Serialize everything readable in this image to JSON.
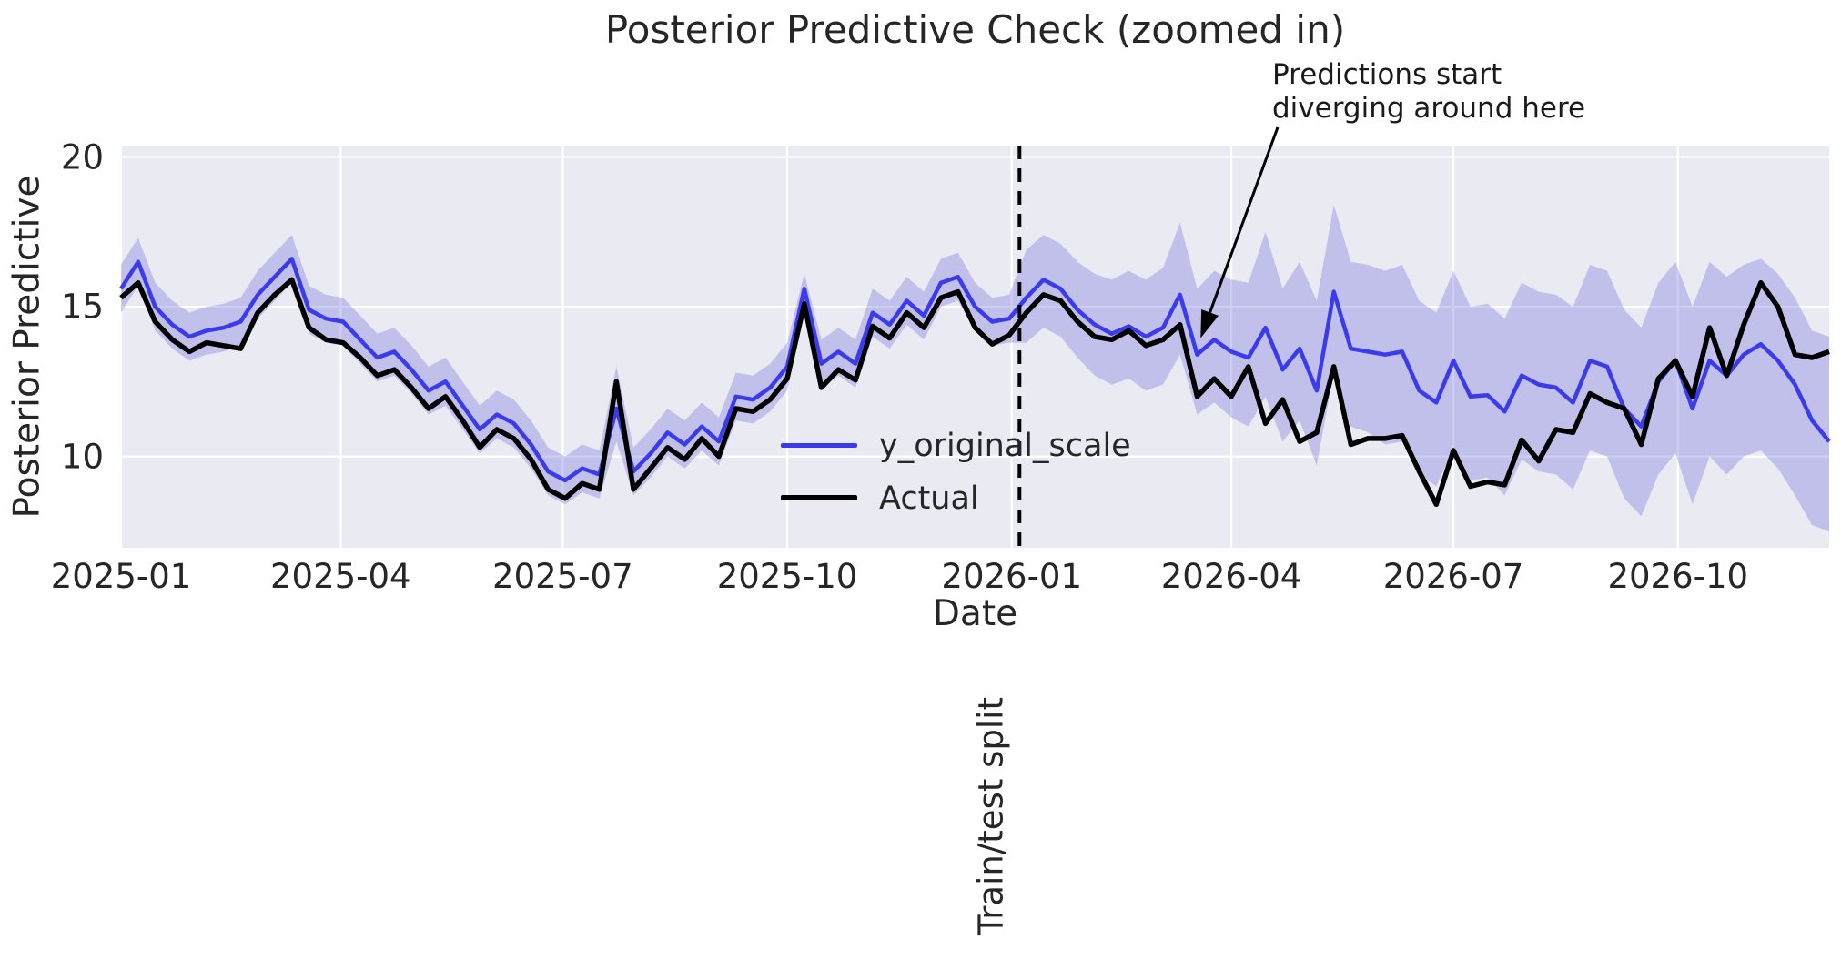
{
  "title": "Posterior Predictive Check (zoomed in)",
  "annotation": {
    "line1": "Predictions start",
    "line2": "diverging around here",
    "tip_week": 63.2,
    "tip_value": 13.95
  },
  "split": {
    "label": "Train/test split",
    "week": 52.6
  },
  "axes": {
    "xlabel": "Date",
    "ylabel": "Posterior Predictive"
  },
  "legend": {
    "entries": [
      "y_original_scale",
      "Actual"
    ]
  },
  "colors": {
    "plot_background": "#eaeaf2",
    "gridline": "#ffffff",
    "predicted_line": "#3b3bec",
    "actual_line": "#000000",
    "band_fill": "rgba(105,105,219,0.33)",
    "text": "#262626",
    "annotation_arrow": "#000000",
    "split_line": "#000000"
  },
  "chart_data": {
    "type": "line",
    "title": "Posterior Predictive Check (zoomed in)",
    "xlabel": "Date",
    "ylabel": "Posterior Predictive",
    "ylim": [
      6.95,
      20.38
    ],
    "yticks": [
      10,
      15,
      20
    ],
    "grid": true,
    "legend_position": "center-right-inside",
    "x_weeks_total": 100,
    "xticks": [
      {
        "week": 0.0,
        "label": "2025-01"
      },
      {
        "week": 12.857,
        "label": "2025-04"
      },
      {
        "week": 25.857,
        "label": "2025-07"
      },
      {
        "week": 39.0,
        "label": "2025-10"
      },
      {
        "week": 52.143,
        "label": "2026-01"
      },
      {
        "week": 65.0,
        "label": "2026-04"
      },
      {
        "week": 78.0,
        "label": "2026-07"
      },
      {
        "week": 91.143,
        "label": "2026-10"
      }
    ],
    "dates": [
      "2025-01-01",
      "2025-01-08",
      "2025-01-15",
      "2025-01-22",
      "2025-01-29",
      "2025-02-05",
      "2025-02-12",
      "2025-02-19",
      "2025-02-26",
      "2025-03-05",
      "2025-03-12",
      "2025-03-19",
      "2025-03-26",
      "2025-04-02",
      "2025-04-09",
      "2025-04-16",
      "2025-04-23",
      "2025-04-30",
      "2025-05-07",
      "2025-05-14",
      "2025-05-21",
      "2025-05-28",
      "2025-06-04",
      "2025-06-11",
      "2025-06-18",
      "2025-06-25",
      "2025-07-02",
      "2025-07-09",
      "2025-07-16",
      "2025-07-23",
      "2025-07-30",
      "2025-08-06",
      "2025-08-13",
      "2025-08-20",
      "2025-08-27",
      "2025-09-03",
      "2025-09-10",
      "2025-09-17",
      "2025-09-24",
      "2025-10-01",
      "2025-10-08",
      "2025-10-15",
      "2025-10-22",
      "2025-10-29",
      "2025-11-05",
      "2025-11-12",
      "2025-11-19",
      "2025-11-26",
      "2025-12-03",
      "2025-12-10",
      "2025-12-17",
      "2025-12-24",
      "2025-12-31",
      "2026-01-07",
      "2026-01-14",
      "2026-01-21",
      "2026-01-28",
      "2026-02-04",
      "2026-02-11",
      "2026-02-18",
      "2026-02-25",
      "2026-03-04",
      "2026-03-11",
      "2026-03-18",
      "2026-03-25",
      "2026-04-01",
      "2026-04-08",
      "2026-04-15",
      "2026-04-22",
      "2026-04-29",
      "2026-05-06",
      "2026-05-13",
      "2026-05-20",
      "2026-05-27",
      "2026-06-03",
      "2026-06-10",
      "2026-06-17",
      "2026-06-24",
      "2026-07-01",
      "2026-07-08",
      "2026-07-15",
      "2026-07-22",
      "2026-07-29",
      "2026-08-05",
      "2026-08-12",
      "2026-08-19",
      "2026-08-26",
      "2026-09-02",
      "2026-09-09",
      "2026-09-16",
      "2026-09-23",
      "2026-09-30",
      "2026-10-07",
      "2026-10-14",
      "2026-10-21",
      "2026-10-28",
      "2026-11-04",
      "2026-11-11",
      "2026-11-18",
      "2026-11-25",
      "2026-12-02"
    ],
    "series": [
      {
        "name": "y_original_scale",
        "color": "#3b3bec",
        "values": [
          15.6,
          16.5,
          15.0,
          14.4,
          14.0,
          14.2,
          14.3,
          14.5,
          15.4,
          16.0,
          16.6,
          14.9,
          14.6,
          14.5,
          13.9,
          13.3,
          13.5,
          12.9,
          12.2,
          12.5,
          11.7,
          10.9,
          11.4,
          11.1,
          10.4,
          9.5,
          9.2,
          9.6,
          9.4,
          11.6,
          9.5,
          10.1,
          10.8,
          10.4,
          11.0,
          10.5,
          12.0,
          11.9,
          12.3,
          13.0,
          15.6,
          13.1,
          13.5,
          13.1,
          14.8,
          14.4,
          15.2,
          14.7,
          15.8,
          16.0,
          15.0,
          14.5,
          14.6,
          15.3,
          15.9,
          15.6,
          14.9,
          14.4,
          14.1,
          14.35,
          14.0,
          14.3,
          15.4,
          13.4,
          13.9,
          13.5,
          13.3,
          14.3,
          12.9,
          13.6,
          12.2,
          15.5,
          13.6,
          13.5,
          13.4,
          13.5,
          12.2,
          11.8,
          13.2,
          12.0,
          12.05,
          11.5,
          12.7,
          12.4,
          12.3,
          11.8,
          13.2,
          13.0,
          11.6,
          11.0,
          12.5,
          13.2,
          11.6,
          13.2,
          12.7,
          13.4,
          13.75,
          13.2,
          12.4,
          11.2,
          10.5
        ]
      },
      {
        "name": "Actual",
        "color": "#000000",
        "values": [
          15.3,
          15.8,
          14.5,
          13.9,
          13.5,
          13.8,
          13.7,
          13.6,
          14.8,
          15.4,
          15.9,
          14.3,
          13.9,
          13.8,
          13.3,
          12.7,
          12.9,
          12.3,
          11.6,
          12.0,
          11.2,
          10.3,
          10.9,
          10.6,
          9.9,
          8.9,
          8.6,
          9.1,
          8.9,
          12.5,
          8.9,
          9.6,
          10.3,
          9.9,
          10.6,
          10.0,
          11.6,
          11.5,
          11.9,
          12.6,
          15.1,
          12.3,
          12.9,
          12.55,
          14.35,
          13.95,
          14.8,
          14.3,
          15.3,
          15.5,
          14.3,
          13.75,
          14.05,
          14.8,
          15.4,
          15.2,
          14.5,
          14.0,
          13.9,
          14.2,
          13.7,
          13.9,
          14.4,
          12.0,
          12.6,
          12.0,
          13.0,
          11.1,
          11.9,
          10.5,
          10.8,
          13.0,
          10.4,
          10.6,
          10.6,
          10.7,
          9.5,
          8.4,
          10.2,
          9.0,
          9.15,
          9.05,
          10.55,
          9.85,
          10.9,
          10.8,
          12.1,
          11.8,
          11.6,
          10.4,
          12.6,
          13.2,
          12.0,
          14.3,
          12.7,
          14.4,
          15.8,
          15.0,
          13.4,
          13.3,
          13.5
        ]
      }
    ],
    "band": {
      "name": "posterior_predictive_interval",
      "upper": [
        16.4,
        17.3,
        15.8,
        15.2,
        14.8,
        15.0,
        15.1,
        15.3,
        16.2,
        16.8,
        17.4,
        15.7,
        15.4,
        15.3,
        14.7,
        14.1,
        14.3,
        13.7,
        13.0,
        13.3,
        12.5,
        11.7,
        12.2,
        11.9,
        11.2,
        10.3,
        10.0,
        10.4,
        10.2,
        13.0,
        10.3,
        10.9,
        11.6,
        11.2,
        11.8,
        11.3,
        12.8,
        12.7,
        13.1,
        13.8,
        16.1,
        13.9,
        14.3,
        13.9,
        15.6,
        15.2,
        16.0,
        15.5,
        16.6,
        16.8,
        15.8,
        15.3,
        15.4,
        16.9,
        17.4,
        17.1,
        16.5,
        16.1,
        15.9,
        16.2,
        15.9,
        16.3,
        17.8,
        15.6,
        16.2,
        15.9,
        15.8,
        17.5,
        15.6,
        16.5,
        15.2,
        18.4,
        16.5,
        16.4,
        16.2,
        16.4,
        15.2,
        14.8,
        16.2,
        15.0,
        15.1,
        14.6,
        15.8,
        15.5,
        15.4,
        15.0,
        16.4,
        16.2,
        14.9,
        14.3,
        15.8,
        16.5,
        15.0,
        16.5,
        16.0,
        16.4,
        16.6,
        16.1,
        15.3,
        14.2,
        14.0
      ],
      "lower": [
        14.8,
        15.7,
        14.2,
        13.6,
        13.2,
        13.4,
        13.5,
        13.7,
        14.6,
        15.2,
        15.8,
        14.1,
        13.8,
        13.7,
        13.1,
        12.5,
        12.7,
        12.1,
        11.4,
        11.7,
        10.9,
        10.1,
        10.6,
        10.3,
        9.6,
        8.7,
        8.4,
        8.8,
        8.6,
        10.5,
        8.7,
        9.3,
        10.0,
        9.6,
        10.2,
        9.7,
        11.2,
        11.1,
        11.5,
        12.2,
        14.7,
        12.3,
        12.7,
        12.3,
        14.0,
        13.6,
        14.4,
        13.9,
        15.0,
        15.2,
        14.2,
        13.7,
        13.8,
        13.8,
        14.3,
        14.0,
        13.3,
        12.7,
        12.4,
        12.6,
        12.2,
        12.4,
        13.4,
        11.4,
        11.8,
        11.3,
        11.0,
        12.0,
        10.5,
        11.2,
        9.7,
        12.8,
        11.0,
        10.8,
        10.4,
        10.5,
        9.4,
        9.0,
        10.3,
        9.2,
        9.3,
        8.7,
        9.9,
        9.5,
        9.4,
        8.9,
        10.2,
        10.0,
        8.6,
        8.0,
        9.4,
        10.1,
        8.4,
        10.0,
        9.4,
        10.0,
        10.2,
        9.6,
        8.7,
        7.7,
        7.5
      ]
    }
  }
}
